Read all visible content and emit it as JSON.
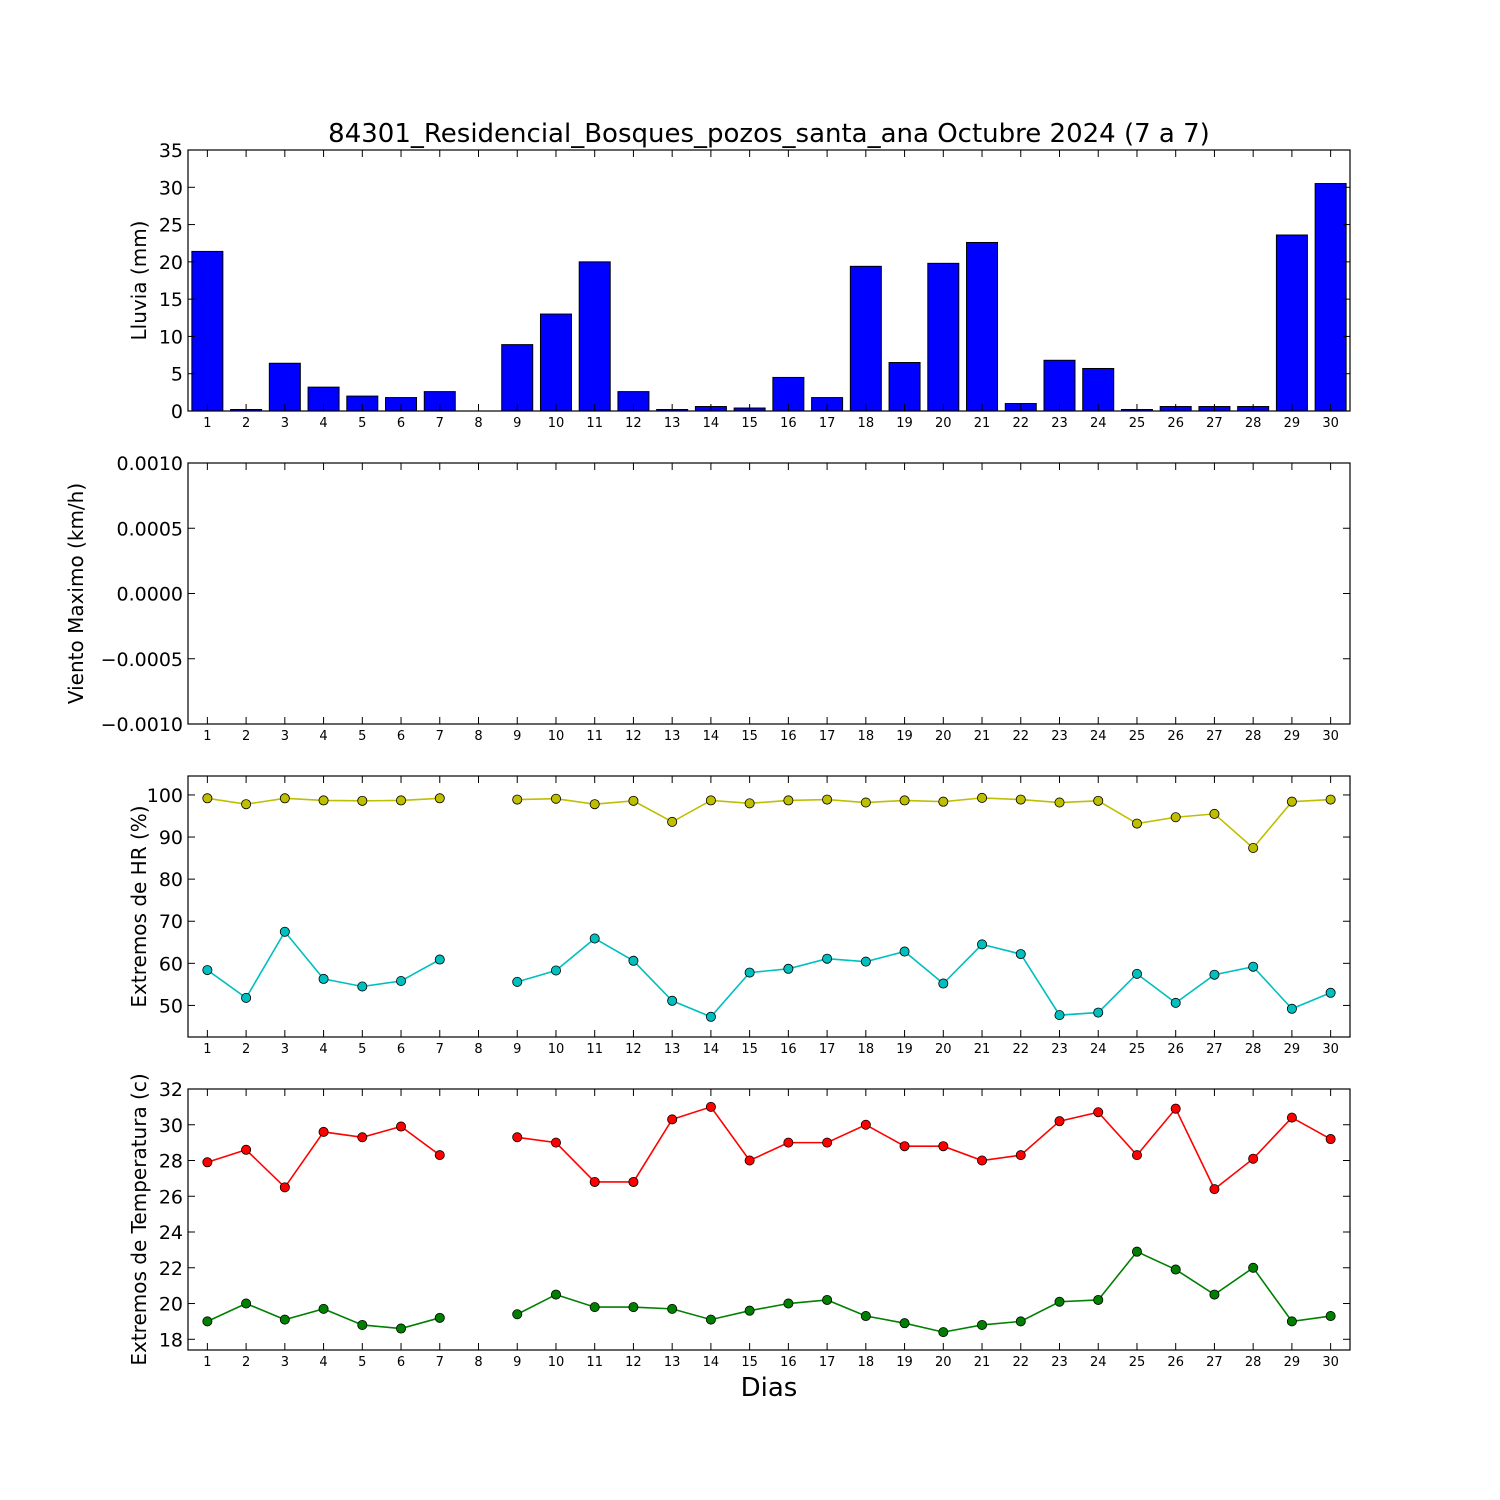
{
  "figure": {
    "title": "84301_Residencial_Bosques_pozos_santa_ana Octubre 2024  (7 a 7)",
    "xlabel": "Dias"
  },
  "chart_data": [
    {
      "type": "bar",
      "ylabel": "Lluvia (mm)",
      "ylim": [
        0,
        35
      ],
      "yticks": [
        0,
        5,
        10,
        15,
        20,
        25,
        30,
        35
      ],
      "xticks": [
        1,
        2,
        3,
        4,
        5,
        6,
        7,
        8,
        9,
        10,
        11,
        12,
        13,
        14,
        15,
        16,
        17,
        18,
        19,
        20,
        21,
        22,
        23,
        24,
        25,
        26,
        27,
        28,
        29,
        30
      ],
      "xlim": [
        0.5,
        30.5
      ],
      "grid": false,
      "colors": {
        "bar": "#0000ff",
        "edge": "#000000"
      },
      "series": [
        {
          "values": [
            21.4,
            0.2,
            6.4,
            3.2,
            2.0,
            1.8,
            2.6,
            0,
            8.9,
            13.0,
            20.0,
            2.6,
            0.2,
            0.6,
            0.4,
            4.5,
            1.8,
            19.4,
            6.5,
            19.8,
            22.6,
            1.0,
            6.8,
            5.7,
            0.2,
            0.6,
            0.6,
            0.6,
            23.6,
            30.5
          ]
        }
      ]
    },
    {
      "type": "line",
      "ylabel": "Viento Maximo (km/h)",
      "ylim": [
        -0.001,
        0.001
      ],
      "yticks": [
        -0.001,
        -0.0005,
        0.0,
        0.0005,
        0.001
      ],
      "ytick_labels": [
        "−0.0010",
        "−0.0005",
        "0.0000",
        "0.0005",
        "0.0010"
      ],
      "xticks": [
        1,
        2,
        3,
        4,
        5,
        6,
        7,
        8,
        9,
        10,
        11,
        12,
        13,
        14,
        15,
        16,
        17,
        18,
        19,
        20,
        21,
        22,
        23,
        24,
        25,
        26,
        27,
        28,
        29,
        30
      ],
      "xlim": [
        0.5,
        30.5
      ],
      "grid": false,
      "series": []
    },
    {
      "type": "line",
      "ylabel": "Extremos de HR (%)",
      "ylim": [
        42.5,
        104.5
      ],
      "yticks": [
        50,
        60,
        70,
        80,
        90,
        100
      ],
      "xticks": [
        1,
        2,
        3,
        4,
        5,
        6,
        7,
        8,
        9,
        10,
        11,
        12,
        13,
        14,
        15,
        16,
        17,
        18,
        19,
        20,
        21,
        22,
        23,
        24,
        25,
        26,
        27,
        28,
        29,
        30
      ],
      "xlim": [
        0.5,
        30.5
      ],
      "grid": false,
      "series": [
        {
          "color": "#bfbf00",
          "values": [
            99.2,
            97.8,
            99.2,
            98.7,
            98.6,
            98.7,
            99.2,
            null,
            98.9,
            99.1,
            97.8,
            98.6,
            93.6,
            98.7,
            98.0,
            98.7,
            98.9,
            98.2,
            98.7,
            98.4,
            99.3,
            98.9,
            98.2,
            98.6,
            93.2,
            94.7,
            95.5,
            87.4,
            98.4,
            98.9
          ]
        },
        {
          "color": "#00bfbf",
          "values": [
            58.4,
            51.8,
            67.5,
            56.3,
            54.5,
            55.8,
            60.9,
            null,
            55.6,
            58.3,
            65.9,
            60.6,
            51.1,
            47.3,
            57.8,
            58.7,
            61.1,
            60.4,
            62.8,
            55.2,
            64.5,
            62.2,
            47.7,
            48.3,
            57.5,
            50.6,
            57.3,
            59.2,
            49.2,
            53.0
          ]
        }
      ]
    },
    {
      "type": "line",
      "ylabel": "Extremos de Temperatura (c)",
      "ylim": [
        17.4,
        32
      ],
      "yticks": [
        18,
        20,
        22,
        24,
        26,
        28,
        30,
        32
      ],
      "xticks": [
        1,
        2,
        3,
        4,
        5,
        6,
        7,
        8,
        9,
        10,
        11,
        12,
        13,
        14,
        15,
        16,
        17,
        18,
        19,
        20,
        21,
        22,
        23,
        24,
        25,
        26,
        27,
        28,
        29,
        30
      ],
      "xlim": [
        0.5,
        30.5
      ],
      "grid": false,
      "series": [
        {
          "color": "#ff0000",
          "values": [
            27.9,
            28.6,
            26.5,
            29.6,
            29.3,
            29.9,
            28.3,
            null,
            29.3,
            29.0,
            26.8,
            26.8,
            30.3,
            31.0,
            28.0,
            29.0,
            29.0,
            30.0,
            28.8,
            28.8,
            28.0,
            28.3,
            30.2,
            30.7,
            28.3,
            30.9,
            26.4,
            28.1,
            30.4,
            29.2
          ]
        },
        {
          "color": "#008000",
          "values": [
            19.0,
            20.0,
            19.1,
            19.7,
            18.8,
            18.6,
            19.2,
            null,
            19.4,
            20.5,
            19.8,
            19.8,
            19.7,
            19.1,
            19.6,
            20.0,
            20.2,
            19.3,
            18.9,
            18.4,
            18.8,
            19.0,
            20.1,
            20.2,
            22.9,
            21.9,
            20.5,
            22.0,
            19.0,
            19.3
          ]
        }
      ]
    }
  ]
}
